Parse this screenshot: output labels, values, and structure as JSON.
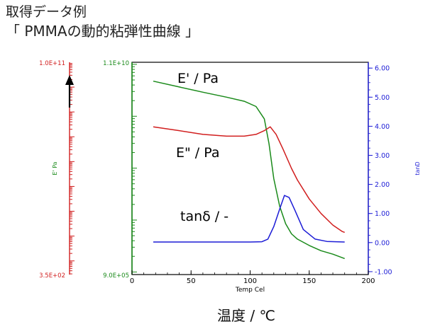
{
  "header": {
    "title": "取得データ例",
    "subtitle": "「 PMMAの動的粘弾性曲線 」"
  },
  "x_caption": "温度 / ℃",
  "chart_data": {
    "type": "line",
    "xlabel": "Temp Cel",
    "xlim": [
      0,
      200
    ],
    "x_ticks": [
      "0",
      "50",
      "100",
      "150",
      "200"
    ],
    "left_axis_outer": {
      "label": "E' Pa",
      "top": "1.0E+11",
      "bottom": "3.5E+02",
      "color": "#d11e1e"
    },
    "left_axis_inner": {
      "top": "1.1E+10",
      "bottom": "9.0E+05",
      "color": "#1a8a1a"
    },
    "right_axis": {
      "label": "tanD",
      "ylim": [
        -1.1,
        6.2
      ],
      "ticks": [
        "6.00",
        "5.00",
        "4.00",
        "3.00",
        "2.00",
        "1.00",
        "0.00",
        "-1.00"
      ],
      "color": "#1c1cd6"
    },
    "series": [
      {
        "name": "E' / Pa",
        "color": "#1a8a1a",
        "x": [
          18,
          40,
          60,
          80,
          95,
          105,
          112,
          116,
          120,
          125,
          130,
          135,
          140,
          150,
          160,
          170,
          180
        ],
        "y": [
          5.55,
          5.35,
          5.17,
          5.0,
          4.86,
          4.68,
          4.25,
          3.4,
          2.2,
          1.25,
          0.65,
          0.3,
          0.12,
          -0.1,
          -0.28,
          -0.4,
          -0.55
        ]
      },
      {
        "name": "E\" / Pa",
        "color": "#d11e1e",
        "x": [
          18,
          40,
          60,
          80,
          95,
          105,
          112,
          117,
          122,
          128,
          135,
          140,
          150,
          160,
          170,
          178,
          180
        ],
        "y": [
          3.98,
          3.85,
          3.72,
          3.66,
          3.66,
          3.72,
          3.85,
          3.98,
          3.72,
          3.2,
          2.55,
          2.15,
          1.5,
          1.0,
          0.6,
          0.38,
          0.35
        ]
      },
      {
        "name": "tanδ / -",
        "color": "#1c1cd6",
        "x": [
          18,
          60,
          100,
          110,
          115,
          120,
          125,
          129,
          133,
          138,
          145,
          155,
          165,
          180
        ],
        "y": [
          0.02,
          0.02,
          0.02,
          0.03,
          0.12,
          0.55,
          1.15,
          1.62,
          1.55,
          1.1,
          0.45,
          0.12,
          0.04,
          0.02
        ]
      }
    ]
  }
}
